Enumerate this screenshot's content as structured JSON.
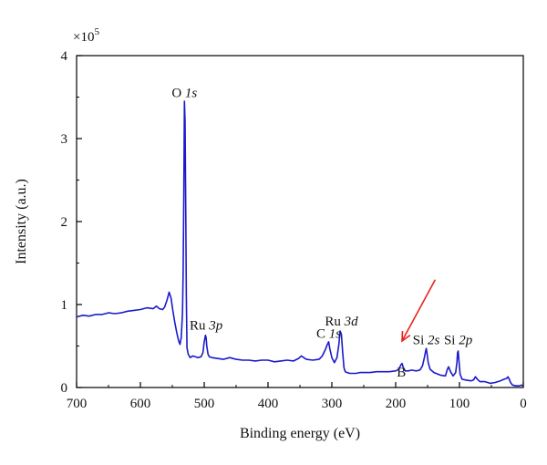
{
  "chart_data": {
    "type": "line",
    "xlabel": "Binding energy (eV)",
    "ylabel": "Intensity (a.u.)",
    "xlim": [
      700,
      0
    ],
    "ylim": [
      0,
      400000
    ],
    "x_ticks": [
      "700",
      "600",
      "500",
      "400",
      "300",
      "200",
      "100",
      "0"
    ],
    "y_ticks": [
      "0",
      "1",
      "2",
      "3",
      "4"
    ],
    "y_multiplier": {
      "base": "×10",
      "exponent": "5"
    },
    "line_color": "#1a1acc",
    "annotation_arrow_color": "#e8231c",
    "arrow": {
      "from": [
        138,
        130000
      ],
      "to": [
        190,
        56000
      ],
      "points_to": "B"
    },
    "peak_labels": [
      {
        "element": "O",
        "orbital": "1s",
        "x": 531,
        "y": 350000
      },
      {
        "element": "Ru",
        "orbital": "3p",
        "x": 497,
        "y": 70000
      },
      {
        "element": "C",
        "orbital": "1s",
        "x": 305,
        "y": 60000
      },
      {
        "element": "Ru",
        "orbital": "3d",
        "x": 285,
        "y": 75000
      },
      {
        "element": "B",
        "orbital": "",
        "x": 191,
        "y": 13000
      },
      {
        "element": "Si",
        "orbital": "2s",
        "x": 152,
        "y": 52000
      },
      {
        "element": "Si",
        "orbital": "2p",
        "x": 102,
        "y": 52000
      }
    ],
    "series": [
      {
        "x": [
          700,
          690,
          680,
          670,
          660,
          650,
          640,
          630,
          620,
          610,
          600,
          590,
          580,
          575,
          570,
          565,
          562,
          558,
          555,
          552,
          549,
          546,
          543,
          540,
          538,
          536,
          534,
          533,
          532,
          531,
          530,
          529,
          528,
          527,
          525,
          522,
          518,
          514,
          510,
          505,
          502,
          500,
          498,
          497,
          496,
          494,
          492,
          488,
          480,
          470,
          460,
          450,
          440,
          430,
          420,
          410,
          400,
          390,
          380,
          370,
          360,
          352,
          348,
          344,
          340,
          330,
          320,
          315,
          310,
          307,
          305,
          303,
          300,
          296,
          292,
          289,
          287,
          285,
          283,
          281,
          279,
          276,
          272,
          268,
          262,
          256,
          250,
          240,
          230,
          220,
          210,
          200,
          195,
          192,
          190,
          188,
          185,
          180,
          175,
          168,
          162,
          158,
          155,
          153,
          152,
          151,
          149,
          146,
          140,
          130,
          122,
          119,
          117,
          114,
          110,
          106,
          104,
          103,
          102,
          101,
          99,
          96,
          90,
          82,
          78,
          75,
          72,
          68,
          60,
          52,
          44,
          36,
          30,
          26,
          24,
          22,
          20,
          17,
          12,
          6,
          3,
          1
        ],
        "y": [
          85000,
          87000,
          86000,
          88000,
          88000,
          90000,
          89000,
          90000,
          92000,
          93000,
          94000,
          96000,
          95000,
          98000,
          95000,
          94000,
          97000,
          106000,
          115000,
          108000,
          92000,
          78000,
          66000,
          56000,
          52000,
          60000,
          90000,
          140000,
          230000,
          345000,
          320000,
          220000,
          110000,
          48000,
          40000,
          36000,
          38000,
          37000,
          36000,
          37000,
          42000,
          55000,
          63000,
          60000,
          50000,
          40000,
          37000,
          36000,
          35000,
          34000,
          36000,
          34000,
          33000,
          33000,
          32000,
          33000,
          33000,
          31000,
          32000,
          33000,
          32000,
          35000,
          38000,
          36000,
          34000,
          33000,
          34000,
          38000,
          46000,
          52000,
          55000,
          46000,
          36000,
          30000,
          36000,
          52000,
          68000,
          64000,
          42000,
          24000,
          19000,
          18000,
          17000,
          17000,
          17000,
          18000,
          18000,
          18000,
          19000,
          19000,
          19000,
          20000,
          22000,
          27000,
          29000,
          24000,
          20000,
          20000,
          21000,
          20000,
          21000,
          26000,
          36000,
          44000,
          47000,
          42000,
          30000,
          22000,
          18000,
          15000,
          14000,
          22000,
          25000,
          19000,
          14000,
          18000,
          30000,
          42000,
          44000,
          34000,
          16000,
          10000,
          9000,
          8000,
          9000,
          13000,
          10000,
          7000,
          7000,
          5000,
          6000,
          8000,
          10000,
          11000,
          13000,
          10000,
          6000,
          3000,
          2000,
          2000,
          3000,
          2000
        ]
      }
    ]
  }
}
